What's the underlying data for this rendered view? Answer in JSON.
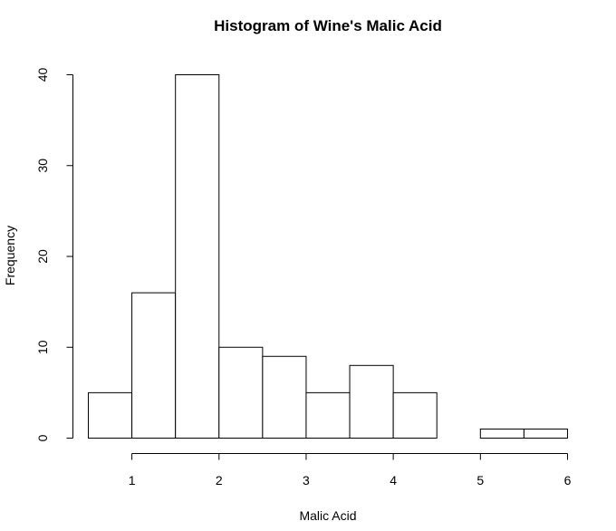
{
  "chart_data": {
    "type": "bar",
    "title": "Histogram of Wine's Malic Acid",
    "xlabel": "Malic Acid",
    "ylabel": "Frequency",
    "bin_edges": [
      0.5,
      1.0,
      1.5,
      2.0,
      2.5,
      3.0,
      3.5,
      4.0,
      4.5,
      5.0,
      5.5,
      6.0
    ],
    "values": [
      5,
      16,
      40,
      10,
      9,
      5,
      8,
      5,
      0,
      1,
      1
    ],
    "xlim": [
      0.5,
      6.0
    ],
    "ylim": [
      0,
      40
    ],
    "x_ticks": [
      1,
      2,
      3,
      4,
      5,
      6
    ],
    "y_ticks": [
      0,
      10,
      20,
      30,
      40
    ],
    "grid": false,
    "bar_fill": "#ffffff",
    "bar_stroke": "#000000"
  }
}
